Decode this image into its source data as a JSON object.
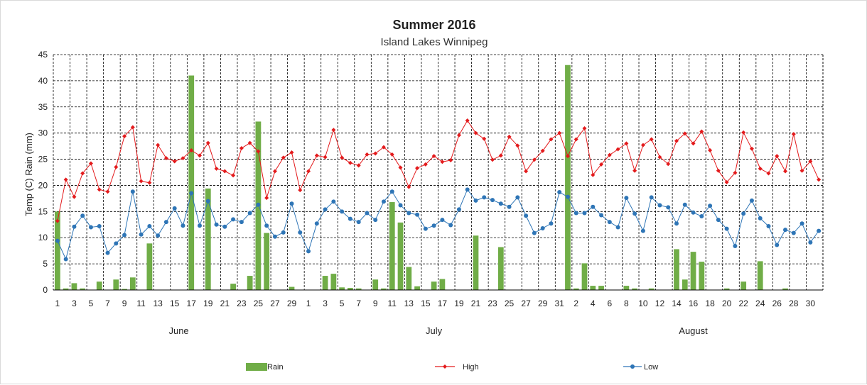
{
  "chart_data": {
    "type": "bar",
    "title": "Summer 2016",
    "subtitle": "Island Lakes Winnipeg",
    "ylabel": "Temp (C) Rain (mm)",
    "ylim": [
      0,
      45
    ],
    "yticks": [
      0,
      5,
      10,
      15,
      20,
      25,
      30,
      35,
      40,
      45
    ],
    "grid": true,
    "legend_position": "bottom",
    "months": [
      "June",
      "July",
      "August"
    ],
    "days_per_month": [
      30,
      31,
      31
    ],
    "x_tick_labels": [
      "1",
      "3",
      "5",
      "7",
      "9",
      "11",
      "13",
      "15",
      "17",
      "19",
      "21",
      "23",
      "25",
      "27",
      "29",
      "1",
      "3",
      "5",
      "7",
      "9",
      "11",
      "13",
      "15",
      "17",
      "19",
      "21",
      "23",
      "25",
      "27",
      "29",
      "31",
      "2",
      "4",
      "6",
      "8",
      "10",
      "12",
      "14",
      "16",
      "18",
      "20",
      "22",
      "24",
      "26",
      "28",
      "30"
    ],
    "colors": {
      "rain": "#70ad47",
      "high": "#e31a1c",
      "low": "#2e75b6",
      "grid": "#000000"
    },
    "series": [
      {
        "name": "Rain",
        "kind": "bar",
        "values": [
          15,
          0.3,
          1.3,
          0.3,
          0,
          1.6,
          0,
          2,
          0.2,
          2.4,
          0,
          8.9,
          0,
          0,
          0,
          0,
          41,
          0,
          19.4,
          0,
          0,
          1.2,
          0,
          2.7,
          32.2,
          10.9,
          0,
          0,
          0.6,
          0,
          0,
          0,
          2.7,
          3.1,
          0.5,
          0.4,
          0.3,
          0,
          2,
          0.3,
          16.8,
          12.9,
          4.4,
          0.7,
          0,
          1.6,
          2.1,
          0,
          0,
          0,
          10.4,
          0,
          0,
          8.2,
          0,
          0,
          0,
          0,
          0,
          0,
          0,
          43,
          0.3,
          5.1,
          0.8,
          0.8,
          0,
          0,
          0.8,
          0.3,
          0,
          0.3,
          0,
          0,
          7.8,
          2,
          7.3,
          5.4,
          0,
          0,
          0.3,
          0,
          1.6,
          0,
          5.5,
          0,
          0,
          0.3,
          0,
          0,
          0,
          0
        ]
      },
      {
        "name": "High",
        "kind": "line",
        "values": [
          13.2,
          21.1,
          17.8,
          22.3,
          24.2,
          19.2,
          18.8,
          23.5,
          29.4,
          31.1,
          20.8,
          20.5,
          27.7,
          25.2,
          24.6,
          25.2,
          26.7,
          25.7,
          28.1,
          23.2,
          22.7,
          21.9,
          27.1,
          28.1,
          26.5,
          17.6,
          22.7,
          25.3,
          26.3,
          19.1,
          22.7,
          25.7,
          25.4,
          30.6,
          25.3,
          24.3,
          23.8,
          25.9,
          26.1,
          27.3,
          25.9,
          23.4,
          19.7,
          23.3,
          24,
          25.6,
          24.5,
          24.8,
          29.6,
          32.4,
          30,
          28.9,
          24.9,
          25.7,
          29.3,
          27.6,
          22.7,
          24.9,
          26.6,
          28.8,
          30,
          25.6,
          28.8,
          30.9,
          22,
          24,
          25.8,
          26.9,
          28,
          22.8,
          27.7,
          28.8,
          25.4,
          24.1,
          28.5,
          29.9,
          28,
          30.3,
          26.7,
          22.8,
          20.6,
          22.4,
          30.1,
          27,
          23.2,
          22.3,
          25.6,
          22.7,
          29.8,
          22.8,
          24.6,
          21.1
        ]
      },
      {
        "name": "Low",
        "kind": "line",
        "values": [
          9.4,
          5.9,
          12.1,
          14.2,
          12,
          12.2,
          7.1,
          8.9,
          10.5,
          18.8,
          10.6,
          12.2,
          10.4,
          13,
          15.6,
          12.3,
          18.5,
          12.3,
          17,
          12.5,
          12.1,
          13.5,
          13,
          14.7,
          16.3,
          12.3,
          10.2,
          11,
          16.5,
          11,
          7.4,
          12.7,
          15.4,
          16.9,
          15,
          13.6,
          13,
          14.7,
          13.4,
          16.9,
          18.8,
          16.2,
          14.7,
          14.4,
          11.7,
          12.3,
          13.4,
          12.4,
          15.4,
          19.2,
          17.1,
          17.7,
          17.2,
          16.5,
          15.9,
          17.7,
          14.2,
          10.9,
          11.8,
          12.7,
          18.7,
          17.8,
          14.7,
          14.7,
          15.9,
          14.3,
          13,
          12,
          17.6,
          14.6,
          11.3,
          17.7,
          16.2,
          15.8,
          12.7,
          16.3,
          14.8,
          14.1,
          16.1,
          13.4,
          11.7,
          8.4,
          14.6,
          17.1,
          13.7,
          12.2,
          8.6,
          11.5,
          10.9,
          12.7,
          9.1,
          11.3
        ]
      }
    ]
  }
}
